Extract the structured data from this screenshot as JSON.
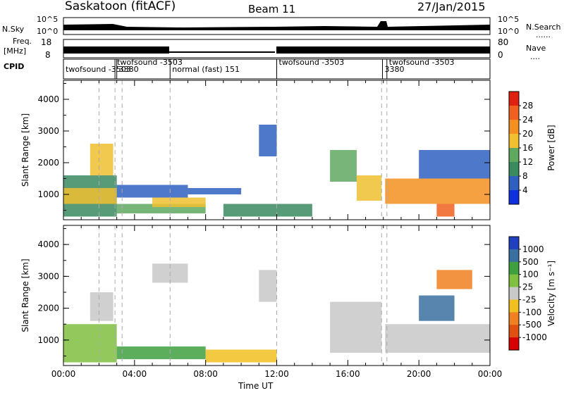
{
  "header": {
    "station": "Saskatoon (fitACF)",
    "beam": "Beam 11",
    "date": "27/Jan/2015"
  },
  "strips": {
    "nsky_label": "N.Sky",
    "nsearch_label": "N.Search",
    "freq_label_top": "Freq.",
    "freq_label_unit": "[MHz]",
    "nave_label": "Nave",
    "cpid_label": "CPID",
    "nsky_ticks": [
      "10^5",
      "10^0"
    ],
    "nsearch_ticks": [
      "10^5",
      "10^0"
    ],
    "freq_ticks": [
      "18",
      "8"
    ],
    "nave_ticks": [
      "80",
      "0"
    ]
  },
  "cpid_segments": [
    {
      "label": "twofsound -3503",
      "start_h": 0.0,
      "end_h": 2.9
    },
    {
      "label": "twofsound -3503",
      "start_h": 2.9,
      "end_h": 3.35
    },
    {
      "label": "3380",
      "start_h": 3.0,
      "end_h": 3.35
    },
    {
      "label": "normal (fast) 151",
      "start_h": 6.0,
      "end_h": 12.0
    },
    {
      "label": "twofsound -3503",
      "start_h": 12.0,
      "end_h": 17.95
    },
    {
      "label": "3380",
      "start_h": 17.95,
      "end_h": 18.2
    },
    {
      "label": "twofsound -3503",
      "start_h": 18.2,
      "end_h": 24.0
    }
  ],
  "colors": {
    "scale": [
      "#1b2ad8",
      "#2a55b8",
      "#3f7fbf",
      "#3a8a5c",
      "#5aa85a",
      "#7dc24a",
      "#c8c8c8",
      "#f0c020",
      "#f5a020",
      "#f07010",
      "#e83010",
      "#d80000"
    ],
    "power_scale": [
      "#1030e0",
      "#2f60c0",
      "#3a8a60",
      "#60a860",
      "#f0c030",
      "#f59020",
      "#f06020",
      "#e02010"
    ],
    "velocity_scale": [
      "#2040c0",
      "#3a70a0",
      "#40a040",
      "#80c040",
      "#c8c8c8",
      "#f0c020",
      "#f08020",
      "#e05010",
      "#d80000"
    ],
    "axis": "#000000",
    "grid": "#aaaaaa"
  },
  "chart_data": [
    {
      "type": "heatmap",
      "title": "",
      "xlabel": "",
      "ylabel": "Slant Range [km]",
      "xlim": [
        0,
        24
      ],
      "ylim": [
        200,
        4600
      ],
      "x_ticks": [
        "00:00",
        "04:00",
        "08:00",
        "12:00",
        "16:00",
        "20:00",
        "00:00"
      ],
      "y_ticks": [
        1000,
        2000,
        3000,
        4000
      ],
      "colorbar_label": "Power [dB]",
      "colorbar_ticks": [
        4,
        8,
        12,
        16,
        20,
        24,
        28
      ],
      "colorbar_range": [
        0,
        32
      ],
      "grid": false,
      "regions": [
        {
          "t0": 0.0,
          "t1": 3.0,
          "r0": 300,
          "r1": 1600,
          "v": 12
        },
        {
          "t0": 0.0,
          "t1": 3.0,
          "r0": 700,
          "r1": 1200,
          "v": 22
        },
        {
          "t0": 1.5,
          "t1": 2.8,
          "r0": 1600,
          "r1": 2600,
          "v": 20
        },
        {
          "t0": 3.0,
          "t1": 7.0,
          "r0": 900,
          "r1": 1300,
          "v": 8
        },
        {
          "t0": 3.0,
          "t1": 8.0,
          "r0": 400,
          "r1": 700,
          "v": 16
        },
        {
          "t0": 5.0,
          "t1": 8.0,
          "r0": 600,
          "r1": 900,
          "v": 22
        },
        {
          "t0": 7.0,
          "t1": 10.0,
          "r0": 1000,
          "r1": 1200,
          "v": 10
        },
        {
          "t0": 9.0,
          "t1": 14.0,
          "r0": 300,
          "r1": 700,
          "v": 14
        },
        {
          "t0": 11.0,
          "t1": 12.0,
          "r0": 2200,
          "r1": 3200,
          "v": 8
        },
        {
          "t0": 15.0,
          "t1": 16.5,
          "r0": 1400,
          "r1": 2400,
          "v": 16
        },
        {
          "t0": 16.5,
          "t1": 17.9,
          "r0": 800,
          "r1": 1600,
          "v": 22
        },
        {
          "t0": 18.1,
          "t1": 24.0,
          "r0": 700,
          "r1": 1500,
          "v": 24
        },
        {
          "t0": 20.0,
          "t1": 24.0,
          "r0": 1500,
          "r1": 2400,
          "v": 10
        },
        {
          "t0": 21.0,
          "t1": 22.0,
          "r0": 300,
          "r1": 700,
          "v": 28
        }
      ]
    },
    {
      "type": "heatmap",
      "title": "",
      "xlabel": "Time UT",
      "ylabel": "Slant Range [km]",
      "xlim": [
        0,
        24
      ],
      "ylim": [
        200,
        4600
      ],
      "x_ticks": [
        "00:00",
        "04:00",
        "08:00",
        "12:00",
        "16:00",
        "20:00",
        "00:00"
      ],
      "y_ticks": [
        1000,
        2000,
        3000,
        4000
      ],
      "colorbar_label": "Velocity [m s⁻¹]",
      "colorbar_ticks": [
        1000,
        500,
        100,
        25,
        -25,
        -100,
        -500,
        -1000
      ],
      "grid": false,
      "regions": [
        {
          "t0": 0.0,
          "t1": 3.0,
          "r0": 300,
          "r1": 1500,
          "v": 50
        },
        {
          "t0": 1.5,
          "t1": 2.8,
          "r0": 1600,
          "r1": 2500,
          "v": 0
        },
        {
          "t0": 3.0,
          "t1": 8.0,
          "r0": 400,
          "r1": 800,
          "v": 100
        },
        {
          "t0": 5.0,
          "t1": 7.0,
          "r0": 2800,
          "r1": 3400,
          "v": 0
        },
        {
          "t0": 8.0,
          "t1": 12.0,
          "r0": 300,
          "r1": 700,
          "v": -80
        },
        {
          "t0": 11.0,
          "t1": 12.0,
          "r0": 2200,
          "r1": 3200,
          "v": 0
        },
        {
          "t0": 15.0,
          "t1": 17.9,
          "r0": 600,
          "r1": 2200,
          "v": 0
        },
        {
          "t0": 18.1,
          "t1": 24.0,
          "r0": 600,
          "r1": 1500,
          "v": 0
        },
        {
          "t0": 20.0,
          "t1": 22.0,
          "r0": 1600,
          "r1": 2400,
          "v": 300
        },
        {
          "t0": 21.0,
          "t1": 23.0,
          "r0": 2600,
          "r1": 3200,
          "v": -200
        }
      ]
    }
  ]
}
